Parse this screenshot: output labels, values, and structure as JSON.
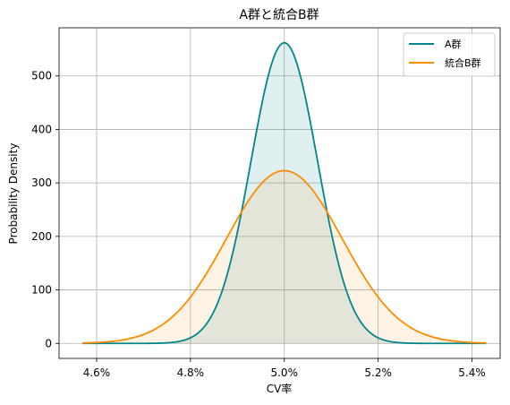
{
  "chart_data": {
    "type": "area",
    "title": "A群と統合B群",
    "xlabel": "CV率",
    "ylabel": "Probability Density",
    "xlim": [
      4.52,
      5.46
    ],
    "ylim": [
      -28,
      590
    ],
    "grid": true,
    "legend_position": "top-right",
    "x_ticks": [
      4.6,
      4.8,
      5.0,
      5.2,
      5.4
    ],
    "x_tick_labels": [
      "4.6%",
      "4.8%",
      "5.0%",
      "5.2%",
      "5.4%"
    ],
    "y_ticks": [
      0,
      100,
      200,
      300,
      400,
      500
    ],
    "y_tick_labels": [
      "0",
      "100",
      "200",
      "300",
      "400",
      "500"
    ],
    "series": [
      {
        "name": "A群",
        "color": "#00868B",
        "fill_color": "#00868B",
        "x_range": [
          4.57,
          5.43
        ],
        "mean": 5.0,
        "std": 0.0709,
        "peak_density": 562
      },
      {
        "name": "統合B群",
        "color": "#FF8C00",
        "fill_color": "#FF8C00",
        "x_range": [
          4.57,
          5.43
        ],
        "mean": 5.0,
        "std": 0.1233,
        "peak_density": 323
      }
    ]
  }
}
